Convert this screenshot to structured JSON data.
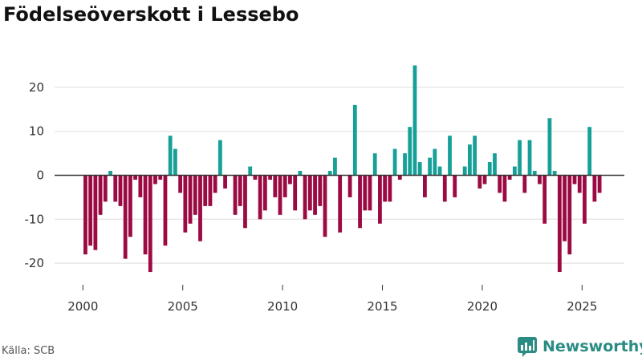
{
  "title": "Födelseöverskott i Lessebo",
  "source": "Källa: SCB",
  "brand": {
    "name": "Newsworthy"
  },
  "colors": {
    "positive": "#16a097",
    "negative": "#9b0a43",
    "zero_line": "#333333",
    "grid": "#dddddd",
    "brand": "#2a8c83"
  },
  "chart_data": {
    "type": "bar",
    "title": "Födelseöverskott i Lessebo",
    "xlabel": "",
    "ylabel": "",
    "x_range": [
      1999.4,
      2027.5
    ],
    "ylim": [
      -25,
      27
    ],
    "yticks": [
      -20,
      -10,
      0,
      10,
      20
    ],
    "xticks": [
      2000,
      2005,
      2010,
      2015,
      2020,
      2025
    ],
    "period": "quarterly",
    "start_year": 2000,
    "values": [
      -18,
      -16,
      -17,
      -9,
      -6,
      1,
      -6,
      -7,
      -19,
      -14,
      -1,
      -5,
      -18,
      -22,
      -2,
      -1,
      -16,
      9,
      6,
      -4,
      -13,
      -11,
      -9,
      -15,
      -7,
      -7,
      -4,
      8,
      -3,
      0,
      -9,
      -7,
      -12,
      2,
      -1,
      -10,
      -8,
      -1,
      -5,
      -9,
      -5,
      -2,
      -8,
      1,
      -10,
      -8,
      -9,
      -7,
      -14,
      1,
      4,
      -13,
      0,
      -5,
      16,
      -12,
      -8,
      -8,
      5,
      -11,
      -6,
      -6,
      6,
      -1,
      5,
      11,
      25,
      3,
      -5,
      4,
      6,
      2,
      -6,
      9,
      -5,
      0,
      2,
      7,
      9,
      -3,
      -2,
      3,
      5,
      -4,
      -6,
      -1,
      2,
      8,
      -4,
      8,
      1,
      -2,
      -11,
      13,
      1,
      -22,
      -15,
      -18,
      -2,
      -4,
      -11,
      11,
      -6,
      -4
    ]
  }
}
